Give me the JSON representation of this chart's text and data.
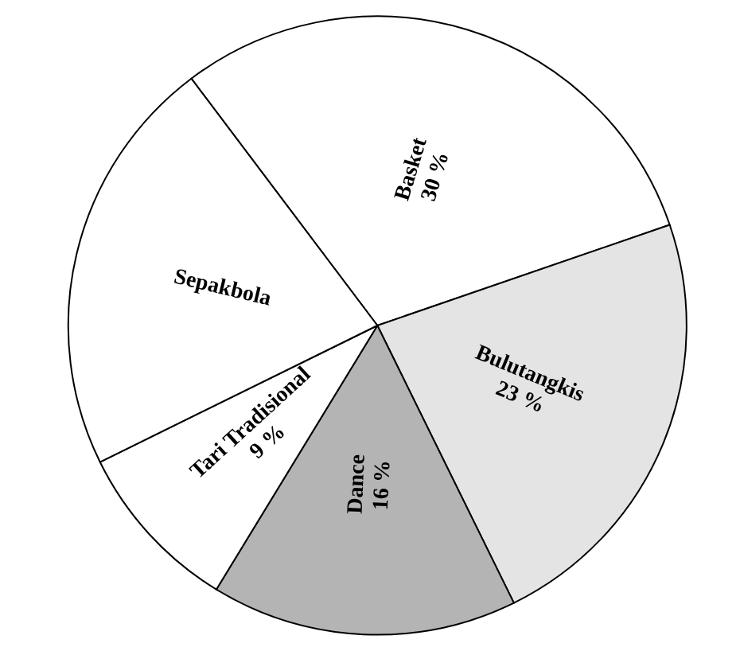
{
  "chart_data": {
    "type": "pie",
    "categories": [
      "Basket",
      "Bulutangkis",
      "Dance",
      "Tari Tradisional",
      "Sepakbola"
    ],
    "values": [
      30,
      23,
      16,
      9,
      22
    ],
    "value_labels": [
      "30 %",
      "23 %",
      "16 %",
      "9 %",
      null
    ],
    "colors": [
      "#ffffff",
      "#e4e4e4",
      "#b4b4b4",
      "#ffffff",
      "#ffffff"
    ],
    "legend": false
  }
}
